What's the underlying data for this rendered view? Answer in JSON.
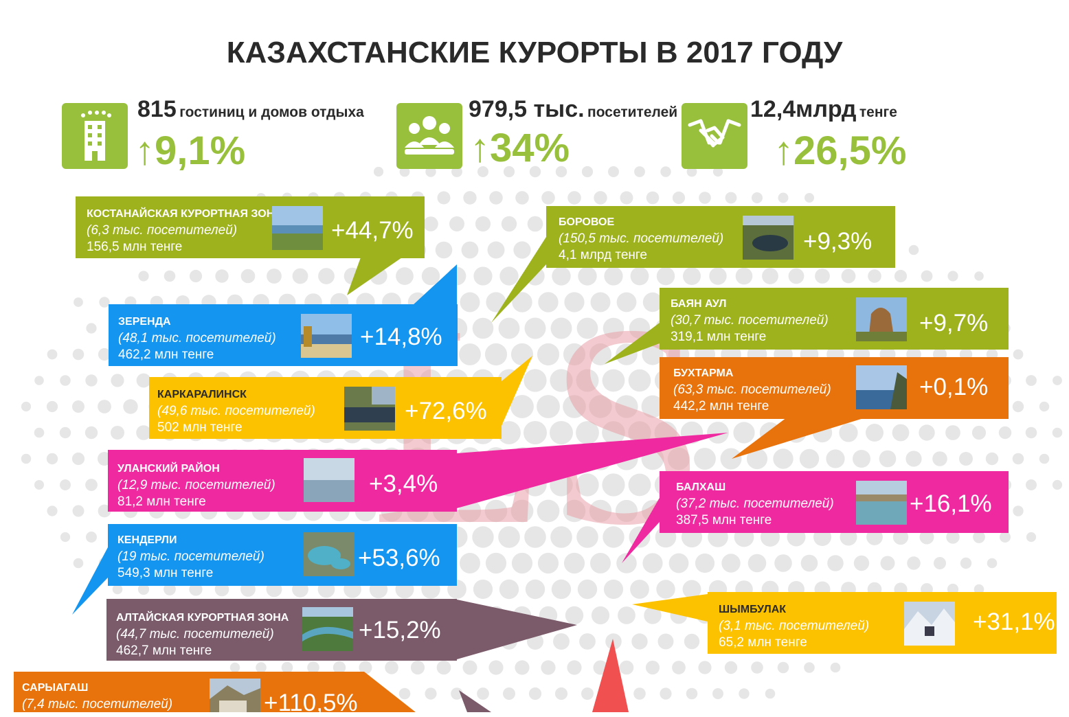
{
  "title": "КАЗАХСТАНСКИЕ КУРОРТЫ В 2017 ГОДУ",
  "colors": {
    "green": "#99c03c",
    "olive": "#9db21d",
    "blue": "#1495f0",
    "yellow": "#fcc200",
    "pink": "#ef2aa0",
    "orange": "#e8730c",
    "mauve": "#7b5a6a",
    "text": "#2a2a2a"
  },
  "stats": [
    {
      "icon": "hotel-icon",
      "value": "815",
      "label": "гостиниц и домов отдыха",
      "growth": "↑9,1%"
    },
    {
      "icon": "people-icon",
      "value": "979,5 тыс.",
      "label": "посетителей",
      "growth": "↑34%"
    },
    {
      "icon": "handshake-icon",
      "value": "12,4млрд",
      "label": "тенге",
      "growth": "↑26,5%"
    }
  ],
  "chart_data": {
    "type": "table",
    "title": "КАЗАХСТАНСКИЕ КУРОРТЫ В 2017 ГОДУ",
    "columns": [
      "resort",
      "visitors",
      "revenue",
      "growth"
    ],
    "rows": [
      {
        "name": "КОСТАНАЙСКАЯ КУРОРТНАЯ ЗОНА",
        "visitors": "(6,3 тыс. посетителей)",
        "revenue": "156,5 млн тенге",
        "growth": "+44,7%",
        "visitors_thousands": 6.3,
        "growth_pct": 44.7
      },
      {
        "name": "ЗЕРЕНДА",
        "visitors": "(48,1 тыс. посетителей)",
        "revenue": "462,2 млн тенге",
        "growth": "+14,8%",
        "visitors_thousands": 48.1,
        "growth_pct": 14.8
      },
      {
        "name": "КАРКАРАЛИНСК",
        "visitors": "(49,6 тыс. посетителей)",
        "revenue": "502 млн тенге",
        "growth": "+72,6%",
        "visitors_thousands": 49.6,
        "growth_pct": 72.6
      },
      {
        "name": "УЛАНСКИЙ РАЙОН",
        "visitors": "(12,9 тыс. посетителей)",
        "revenue": "81,2 млн тенге",
        "growth": "+3,4%",
        "visitors_thousands": 12.9,
        "growth_pct": 3.4
      },
      {
        "name": "КЕНДЕРЛИ",
        "visitors": "(19 тыс. посетителей)",
        "revenue": "549,3 млн тенге",
        "growth": "+53,6%",
        "visitors_thousands": 19,
        "growth_pct": 53.6
      },
      {
        "name": "АЛТАЙСКАЯ КУРОРТНАЯ ЗОНА",
        "visitors": "(44,7 тыс. посетителей)",
        "revenue": "462,7 млн тенге",
        "growth": "+15,2%",
        "visitors_thousands": 44.7,
        "growth_pct": 15.2
      },
      {
        "name": "САРЫАГАШ",
        "visitors": "(7,4 тыс. посетителей)",
        "revenue": "",
        "growth": "+110,5%",
        "visitors_thousands": 7.4,
        "growth_pct": 110.5
      },
      {
        "name": "БОРОВОЕ",
        "visitors": "(150,5 тыс. посетителей)",
        "revenue": "4,1 млрд тенге",
        "growth": "+9,3%",
        "visitors_thousands": 150.5,
        "growth_pct": 9.3
      },
      {
        "name": "БАЯН АУЛ",
        "visitors": "(30,7 тыс. посетителей)",
        "revenue": "319,1 млн тенге",
        "growth": "+9,7%",
        "visitors_thousands": 30.7,
        "growth_pct": 9.7
      },
      {
        "name": "БУХТАРМА",
        "visitors": "(63,3 тыс. посетителей)",
        "revenue": "442,2 млн тенге",
        "growth": "+0,1%",
        "visitors_thousands": 63.3,
        "growth_pct": 0.1
      },
      {
        "name": "БАЛХАШ",
        "visitors": "(37,2 тыс. посетителей)",
        "revenue": "387,5 млн тенге",
        "growth": "+16,1%",
        "visitors_thousands": 37.2,
        "growth_pct": 16.1
      },
      {
        "name": "ШЫМБУЛАК",
        "visitors": "(3,1 тыс. посетителей)",
        "revenue": "65,2 млн тенге",
        "growth": "+31,1%",
        "visitors_thousands": 3.1,
        "growth_pct": 31.1
      }
    ]
  }
}
